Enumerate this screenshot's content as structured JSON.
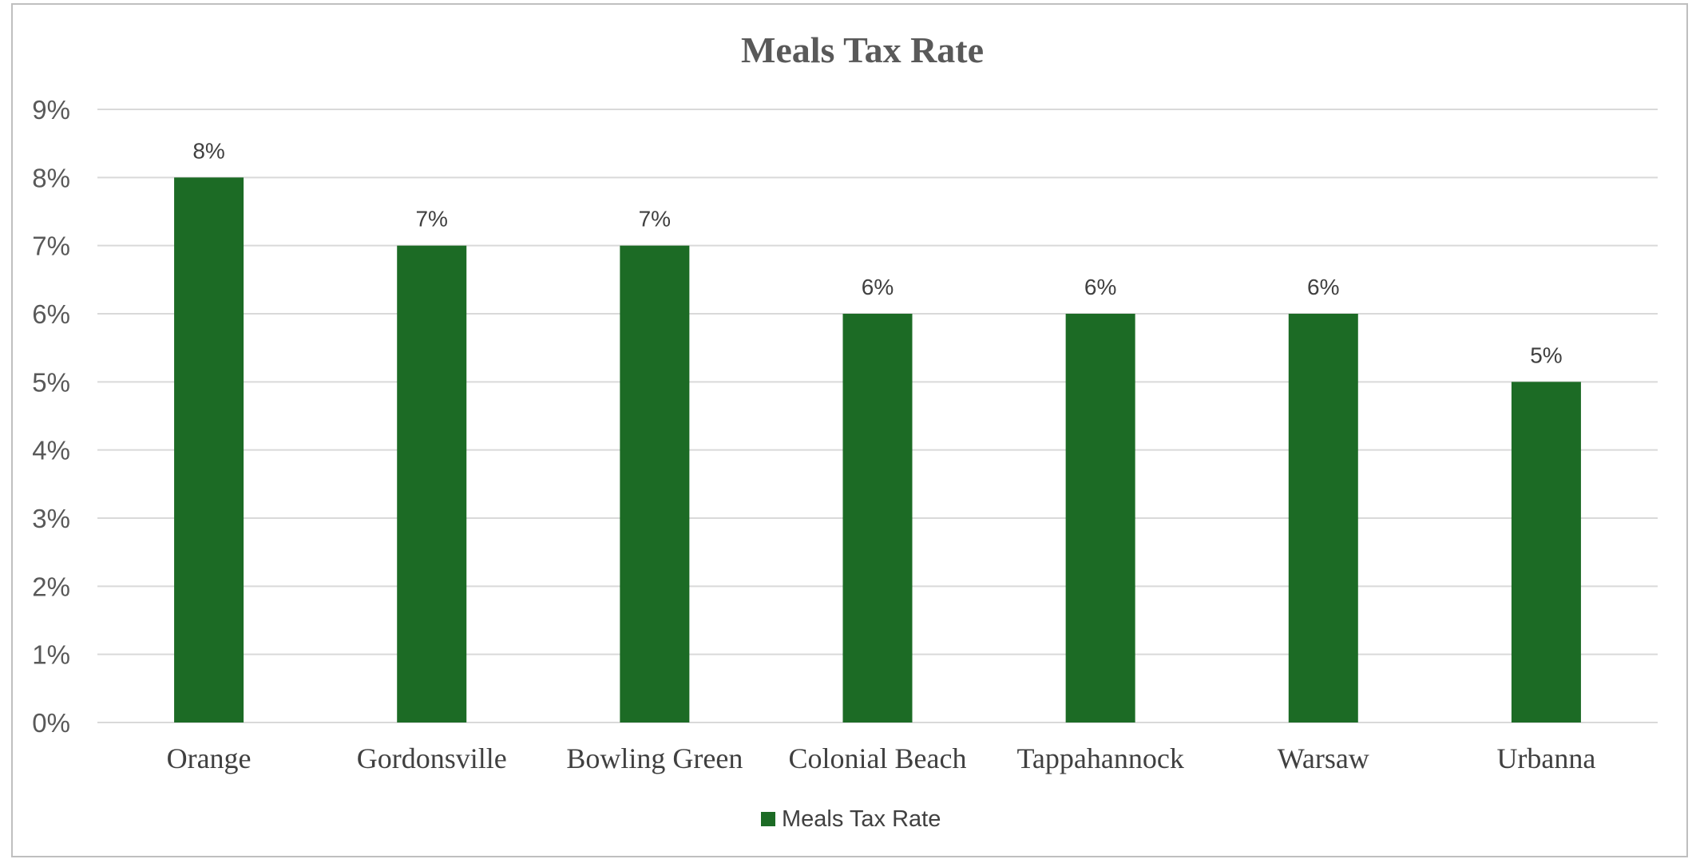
{
  "chart_data": {
    "type": "bar",
    "title": "Meals Tax Rate",
    "xlabel": "",
    "ylabel": "",
    "categories": [
      "Orange",
      "Gordonsville",
      "Bowling Green",
      "Colonial Beach",
      "Tappahannock",
      "Warsaw",
      "Urbanna"
    ],
    "series": [
      {
        "name": "Meals Tax Rate",
        "values": [
          8,
          7,
          7,
          6,
          6,
          6,
          5
        ],
        "data_labels": [
          "8%",
          "7%",
          "7%",
          "6%",
          "6%",
          "6%",
          "5%"
        ],
        "color": "#1c6b25"
      }
    ],
    "ylim": [
      0,
      9
    ],
    "yticks": [
      0,
      1,
      2,
      3,
      4,
      5,
      6,
      7,
      8,
      9
    ],
    "ytick_labels": [
      "0%",
      "1%",
      "2%",
      "3%",
      "4%",
      "5%",
      "6%",
      "7%",
      "8%",
      "9%"
    ],
    "grid": true,
    "legend_position": "bottom"
  }
}
